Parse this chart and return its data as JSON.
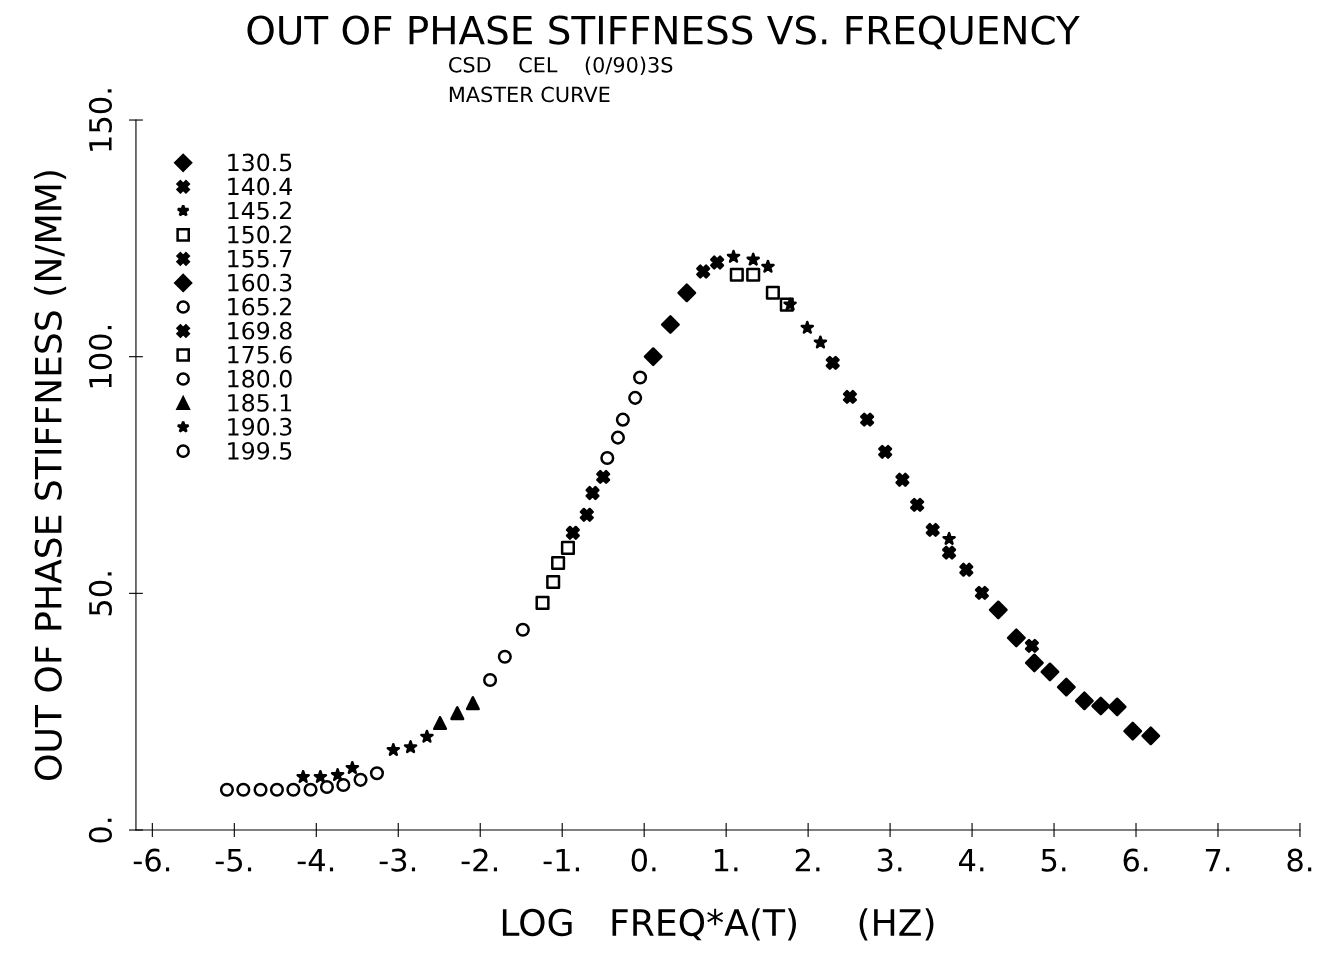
{
  "chart_data": {
    "type": "scatter",
    "title": "OUT OF PHASE STIFFNESS VS. FREQUENCY",
    "subtitle": "CSD    CEL    (0/90)3S\nMASTER CURVE",
    "xlabel": "LOG   FREQ*A(T)     (HZ)",
    "ylabel": "OUT OF PHASE STIFFNESS (N/MM)",
    "xlim": [
      -6.2,
      8
    ],
    "ylim": [
      0,
      150
    ],
    "xticks": [
      {
        "value": -6,
        "label": "-6."
      },
      {
        "value": -5,
        "label": "-5."
      },
      {
        "value": -4,
        "label": "-4."
      },
      {
        "value": -3,
        "label": "-3."
      },
      {
        "value": -2,
        "label": "-2."
      },
      {
        "value": -1,
        "label": "-1."
      },
      {
        "value": 0,
        "label": "0."
      },
      {
        "value": 1,
        "label": "1."
      },
      {
        "value": 2,
        "label": "2."
      },
      {
        "value": 3,
        "label": "3."
      },
      {
        "value": 4,
        "label": "4."
      },
      {
        "value": 5,
        "label": "5."
      },
      {
        "value": 6,
        "label": "6."
      },
      {
        "value": 7,
        "label": "7."
      },
      {
        "value": 8,
        "label": "8."
      }
    ],
    "yticks": [
      {
        "value": 0,
        "label": "0."
      },
      {
        "value": 50,
        "label": "50."
      },
      {
        "value": 100,
        "label": "100."
      },
      {
        "value": 150,
        "label": "150."
      }
    ],
    "grid": false,
    "legend": "top left",
    "series": [
      {
        "name": "130.5",
        "color": "#000000",
        "marker": "diamond",
        "x": [
          4.32,
          4.54,
          4.76,
          4.95,
          5.15,
          5.37,
          5.57,
          5.77,
          5.96,
          6.18
        ],
        "values": [
          46.5,
          40.6,
          35.3,
          33.4,
          30.2,
          27.3,
          26.2,
          26.0,
          20.9,
          19.9
        ]
      },
      {
        "name": "140.4",
        "color": "#000000",
        "marker": "cross",
        "x": [
          2.3,
          2.51,
          2.72,
          2.94,
          3.15,
          3.33,
          3.52,
          3.72,
          3.93,
          4.12
        ],
        "values": [
          98.7,
          91.5,
          86.7,
          79.9,
          74.0,
          68.7,
          63.4,
          58.6,
          55.0,
          50.1
        ]
      },
      {
        "name": "145.2",
        "color": "#000000",
        "marker": "star",
        "x": [
          1.09,
          1.33,
          1.51,
          1.78,
          1.99,
          2.15,
          3.72
        ],
        "values": [
          121.1,
          120.5,
          119.0,
          111.0,
          106.1,
          103.0,
          61.5
        ]
      },
      {
        "name": "150.2",
        "color": "#000000",
        "marker": "square",
        "x": [
          1.13,
          1.33,
          1.57,
          1.74
        ],
        "values": [
          117.3,
          117.3,
          113.5,
          111.0
        ]
      },
      {
        "name": "155.7",
        "color": "#000000",
        "marker": "cross",
        "x": [
          0.72,
          0.89,
          4.73
        ],
        "values": [
          118.0,
          119.9,
          38.9
        ]
      },
      {
        "name": "160.3",
        "color": "#000000",
        "marker": "diamond",
        "x": [
          0.11,
          0.32,
          0.52
        ],
        "values": [
          100.0,
          106.8,
          113.5
        ]
      },
      {
        "name": "165.2",
        "color": "#000000",
        "marker": "circle",
        "x": [
          -0.45,
          -0.32,
          -0.26,
          -0.11,
          -0.05
        ],
        "values": [
          78.6,
          82.9,
          86.7,
          91.3,
          95.6
        ]
      },
      {
        "name": "169.8",
        "color": "#000000",
        "marker": "cross",
        "x": [
          -0.87,
          -0.7,
          -0.63,
          -0.5
        ],
        "values": [
          62.8,
          66.6,
          71.2,
          74.6
        ]
      },
      {
        "name": "175.6",
        "color": "#000000",
        "marker": "square",
        "x": [
          -1.24,
          -1.11,
          -1.05,
          -0.93
        ],
        "values": [
          48.0,
          52.4,
          56.4,
          59.6
        ]
      },
      {
        "name": "180.0",
        "color": "#000000",
        "marker": "circle",
        "x": [
          -1.88,
          -1.7,
          -1.48
        ],
        "values": [
          31.7,
          36.6,
          42.3
        ]
      },
      {
        "name": "185.1",
        "color": "#000000",
        "marker": "triangle",
        "x": [
          -2.49,
          -2.28,
          -2.09
        ],
        "values": [
          22.6,
          24.7,
          26.8
        ]
      },
      {
        "name": "190.3",
        "color": "#000000",
        "marker": "star",
        "x": [
          -4.16,
          -3.95,
          -3.74,
          -3.56,
          -3.06,
          -2.85,
          -2.65
        ],
        "values": [
          11.2,
          11.2,
          11.6,
          13.1,
          16.9,
          17.5,
          19.7
        ]
      },
      {
        "name": "199.5",
        "color": "#000000",
        "marker": "circle",
        "x": [
          -5.09,
          -4.89,
          -4.68,
          -4.48,
          -4.28,
          -4.07,
          -3.87,
          -3.67,
          -3.46,
          -3.26
        ],
        "values": [
          8.5,
          8.5,
          8.5,
          8.5,
          8.5,
          8.5,
          9.1,
          9.5,
          10.6,
          12.0
        ]
      }
    ]
  }
}
